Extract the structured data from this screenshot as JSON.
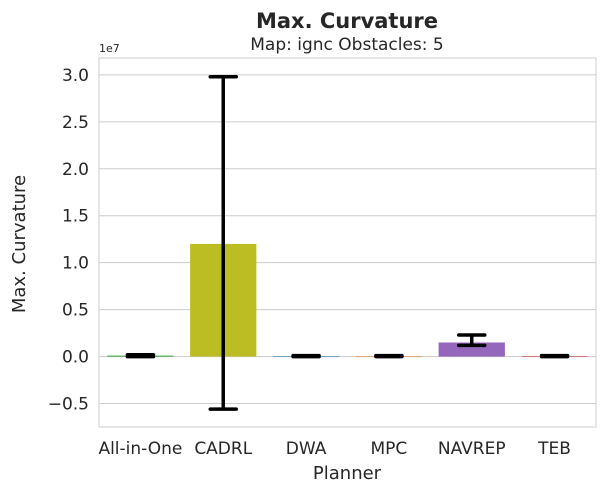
{
  "chart_data": {
    "type": "bar",
    "suptitle": "Max. Curvature",
    "title": "Map: ignc Obstacles: 5",
    "xlabel": "Planner",
    "ylabel": "Max. Curvature",
    "y_multiplier_label": "1e7",
    "y_scale": 10000000,
    "ylim": [
      -0.75,
      3.18
    ],
    "y_ticks": [
      -0.5,
      0.0,
      0.5,
      1.0,
      1.5,
      2.0,
      2.5,
      3.0
    ],
    "y_tick_labels": [
      "−0.5",
      "0.0",
      "0.5",
      "1.0",
      "1.5",
      "2.0",
      "2.5",
      "3.0"
    ],
    "grid": true,
    "categories": [
      "All-in-One",
      "CADRL",
      "DWA",
      "MPC",
      "NAVREP",
      "TEB"
    ],
    "values": [
      0.01,
      1.2,
      0.005,
      0.005,
      0.15,
      0.005
    ],
    "error_low": [
      0.0,
      -0.56,
      0.0,
      0.0,
      0.12,
      0.0
    ],
    "error_high": [
      0.02,
      2.98,
      0.01,
      0.01,
      0.23,
      0.01
    ],
    "colors": [
      "#2ca02c",
      "#bcbd22",
      "#1f77b4",
      "#ff7f0e",
      "#9467bd",
      "#d62728"
    ]
  }
}
